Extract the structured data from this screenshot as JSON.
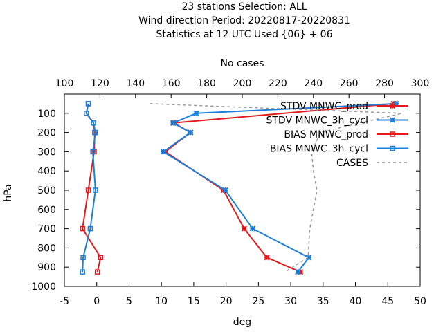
{
  "chart_data": {
    "type": "line",
    "title_lines": [
      "23 stations Selection: ALL",
      "Wind direction  Period: 20220817-20220831",
      "Statistics at 12 UTC  Used {06} + 06"
    ],
    "xlabel": "deg",
    "ylabel": "hPa",
    "x2label": "No cases",
    "xlim": [
      -5,
      50
    ],
    "x_ticks": [
      "-5",
      "0",
      "5",
      "10",
      "15",
      "20",
      "25",
      "30",
      "35",
      "40",
      "45",
      "50"
    ],
    "x2lim": [
      100,
      300
    ],
    "x2_ticks": [
      "100",
      "120",
      "140",
      "160",
      "180",
      "200",
      "220",
      "240",
      "260",
      "280",
      "300"
    ],
    "ylim": [
      1000,
      0
    ],
    "y_ticks": [
      "100",
      "200",
      "300",
      "400",
      "500",
      "600",
      "700",
      "800",
      "900",
      "1000"
    ],
    "legend_position": "top-right",
    "grid": false,
    "series": [
      {
        "name": "STDV MNWC_prod",
        "axis": "x",
        "color": "#e41a1c",
        "marker": "x",
        "dashed": false,
        "points": [
          {
            "x": 45.9,
            "p": 50
          },
          {
            "x": 11.9,
            "p": 150
          },
          {
            "x": 14.5,
            "p": 200
          },
          {
            "x": 10.6,
            "p": 300
          },
          {
            "x": 19.6,
            "p": 500
          },
          {
            "x": 22.8,
            "p": 700
          },
          {
            "x": 26.3,
            "p": 850
          },
          {
            "x": 31.5,
            "p": 925
          }
        ]
      },
      {
        "name": "STDV MNWC_3h_cycl",
        "axis": "x",
        "color": "#1c7fd8",
        "marker": "x",
        "dashed": false,
        "points": [
          {
            "x": 46.3,
            "p": 50
          },
          {
            "x": 15.4,
            "p": 100
          },
          {
            "x": 11.8,
            "p": 150
          },
          {
            "x": 14.5,
            "p": 200
          },
          {
            "x": 10.3,
            "p": 300
          },
          {
            "x": 19.9,
            "p": 500
          },
          {
            "x": 24.1,
            "p": 700
          },
          {
            "x": 32.8,
            "p": 850
          },
          {
            "x": 31.1,
            "p": 925
          }
        ]
      },
      {
        "name": "BIAS MNWC_prod",
        "axis": "x",
        "color": "#e41a1c",
        "marker": "square",
        "dashed": false,
        "points": [
          {
            "x": -1.3,
            "p": 50
          },
          {
            "x": -1.6,
            "p": 100
          },
          {
            "x": -0.5,
            "p": 150
          },
          {
            "x": -0.3,
            "p": 200
          },
          {
            "x": -0.4,
            "p": 300
          },
          {
            "x": -1.3,
            "p": 500
          },
          {
            "x": -2.2,
            "p": 700
          },
          {
            "x": 0.6,
            "p": 850
          },
          {
            "x": 0.1,
            "p": 925
          }
        ]
      },
      {
        "name": "BIAS MNWC_3h_cycl",
        "axis": "x",
        "color": "#1c7fd8",
        "marker": "square",
        "dashed": false,
        "points": [
          {
            "x": -1.3,
            "p": 50
          },
          {
            "x": -1.6,
            "p": 100
          },
          {
            "x": -0.5,
            "p": 150
          },
          {
            "x": -0.2,
            "p": 200
          },
          {
            "x": -0.6,
            "p": 300
          },
          {
            "x": -0.2,
            "p": 500
          },
          {
            "x": -1.0,
            "p": 700
          },
          {
            "x": -2.1,
            "p": 850
          },
          {
            "x": -2.2,
            "p": 925
          }
        ]
      },
      {
        "name": "CASES",
        "axis": "x2",
        "color": "#999999",
        "marker": "none",
        "dashed": true,
        "points": [
          {
            "x": 148,
            "p": 50
          },
          {
            "x": 290,
            "p": 100
          },
          {
            "x": 266,
            "p": 150
          },
          {
            "x": 244,
            "p": 200
          },
          {
            "x": 239,
            "p": 300
          },
          {
            "x": 240,
            "p": 400
          },
          {
            "x": 242,
            "p": 500
          },
          {
            "x": 240,
            "p": 600
          },
          {
            "x": 238,
            "p": 700
          },
          {
            "x": 237,
            "p": 850
          },
          {
            "x": 224,
            "p": 925
          }
        ]
      }
    ]
  }
}
